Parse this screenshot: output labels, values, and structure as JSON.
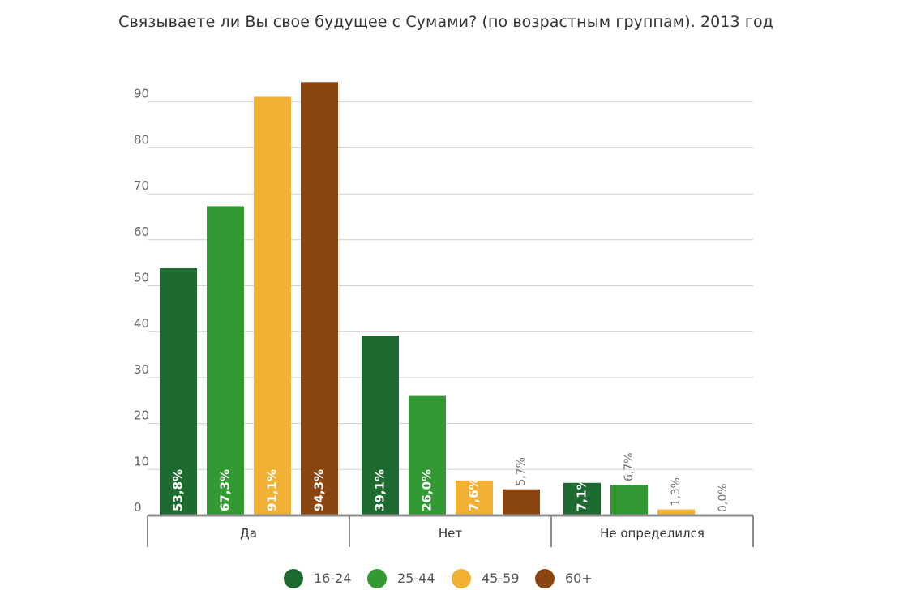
{
  "chart_data": {
    "type": "bar",
    "title": "Связываете ли Вы свое будущее с Сумами? (по возрастным группам). 2013 год",
    "xlabel": "",
    "ylabel": "",
    "ylim": [
      0,
      100
    ],
    "yticks": [
      0,
      10,
      20,
      30,
      40,
      50,
      60,
      70,
      80,
      90
    ],
    "grid": true,
    "legend_position": "bottom",
    "categories": [
      "Да",
      "Нет",
      "Не определился"
    ],
    "series": [
      {
        "name": "16-24",
        "color": "#1e6b31",
        "values": [
          53.8,
          39.1,
          7.1
        ],
        "labels": [
          "53,8%",
          "39,1%",
          "7,1%"
        ]
      },
      {
        "name": "25-44",
        "color": "#339933",
        "values": [
          67.3,
          26.0,
          6.7
        ],
        "labels": [
          "67,3%",
          "26,0%",
          "6,7%"
        ]
      },
      {
        "name": "45-59",
        "color": "#f0b135",
        "values": [
          91.1,
          7.6,
          1.3
        ],
        "labels": [
          "91,1%",
          "7,6%",
          "1,3%"
        ]
      },
      {
        "name": "60+",
        "color": "#8b4511",
        "values": [
          94.3,
          5.7,
          0.0
        ],
        "labels": [
          "94,3%",
          "5,7%",
          "0,0%"
        ]
      }
    ]
  }
}
